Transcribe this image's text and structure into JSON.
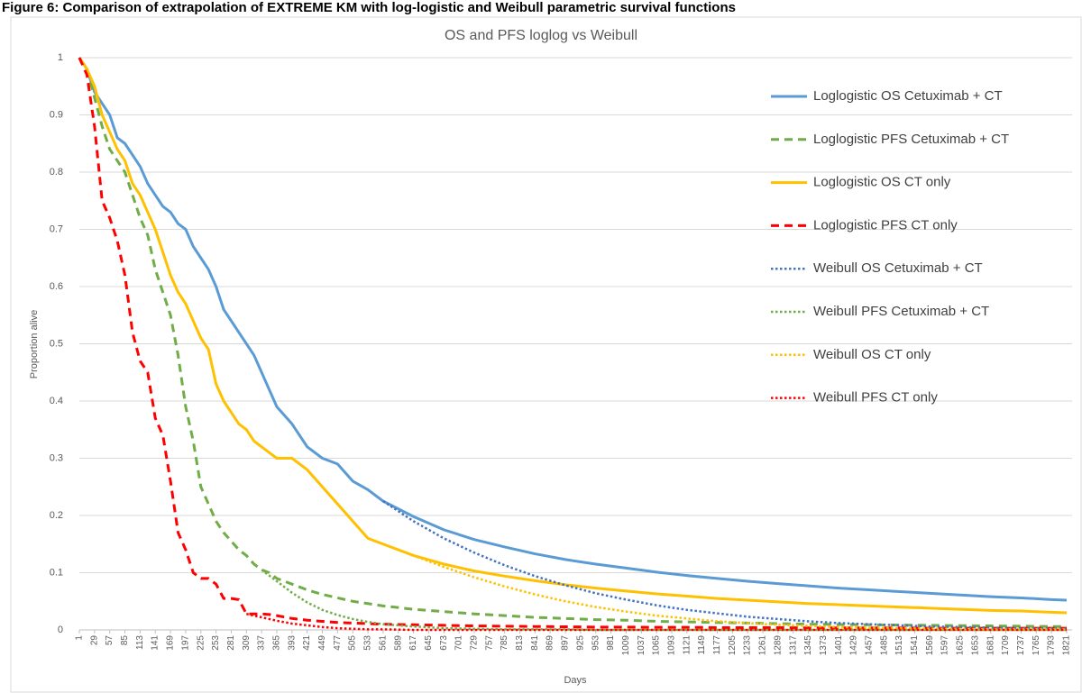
{
  "header": "Figure 6: Comparison of extrapolation of EXTREME KM with log-logistic and Weibull parametric survival functions",
  "chart_data": {
    "type": "line",
    "title": "OS and PFS loglog vs Weibull",
    "x_label": "Days",
    "y_label": "Proportion alive",
    "xlim": [
      1,
      1831
    ],
    "ylim": [
      0,
      1
    ],
    "xticks": [
      1,
      29,
      57,
      85,
      113,
      141,
      169,
      197,
      225,
      253,
      281,
      309,
      337,
      365,
      393,
      421,
      449,
      477,
      505,
      533,
      561,
      589,
      617,
      645,
      673,
      701,
      729,
      757,
      785,
      813,
      841,
      869,
      897,
      925,
      953,
      981,
      1009,
      1037,
      1065,
      1093,
      1121,
      1149,
      1177,
      1205,
      1233,
      1261,
      1289,
      1317,
      1345,
      1373,
      1401,
      1429,
      1457,
      1485,
      1513,
      1541,
      1569,
      1597,
      1625,
      1653,
      1681,
      1709,
      1737,
      1765,
      1793,
      1821
    ],
    "yticks": [
      0,
      0.1,
      0.2,
      0.3,
      0.4,
      0.5,
      0.6,
      0.7,
      0.8,
      0.9,
      1
    ],
    "grid": true,
    "legend_position": "upper right",
    "x": [
      1,
      15,
      29,
      43,
      57,
      71,
      85,
      99,
      113,
      127,
      141,
      155,
      169,
      183,
      197,
      211,
      225,
      239,
      253,
      267,
      281,
      295,
      309,
      323,
      337,
      351,
      365,
      393,
      421,
      449,
      477,
      505,
      533,
      561,
      617,
      673,
      729,
      785,
      841,
      897,
      953,
      1009,
      1065,
      1121,
      1177,
      1233,
      1289,
      1345,
      1401,
      1457,
      1513,
      1569,
      1625,
      1681,
      1737,
      1793,
      1821
    ],
    "series": [
      {
        "name": "Loglogistic OS Cetuximab + CT",
        "color": "#5b9bd5",
        "style": "solid",
        "values": [
          1,
          0.98,
          0.94,
          0.92,
          0.9,
          0.86,
          0.85,
          0.83,
          0.81,
          0.78,
          0.76,
          0.74,
          0.73,
          0.71,
          0.7,
          0.67,
          0.65,
          0.63,
          0.6,
          0.56,
          0.54,
          0.52,
          0.5,
          0.48,
          0.45,
          0.42,
          0.39,
          0.36,
          0.32,
          0.3,
          0.29,
          0.26,
          0.245,
          0.225,
          0.198,
          0.175,
          0.158,
          0.145,
          0.133,
          0.123,
          0.115,
          0.108,
          0.101,
          0.095,
          0.09,
          0.085,
          0.081,
          0.077,
          0.073,
          0.07,
          0.067,
          0.064,
          0.061,
          0.058,
          0.056,
          0.053,
          0.052
        ]
      },
      {
        "name": "Loglogistic PFS Cetuximab + CT",
        "color": "#70ad47",
        "style": "dashed",
        "values": [
          1,
          0.98,
          0.93,
          0.88,
          0.84,
          0.82,
          0.8,
          0.76,
          0.72,
          0.69,
          0.63,
          0.59,
          0.55,
          0.48,
          0.39,
          0.33,
          0.25,
          0.22,
          0.19,
          0.17,
          0.155,
          0.14,
          0.13,
          0.115,
          0.105,
          0.1,
          0.09,
          0.08,
          0.07,
          0.062,
          0.056,
          0.05,
          0.046,
          0.042,
          0.036,
          0.032,
          0.028,
          0.025,
          0.022,
          0.02,
          0.018,
          0.017,
          0.015,
          0.014,
          0.013,
          0.012,
          0.011,
          0.01,
          0.0095,
          0.009,
          0.0085,
          0.008,
          0.0075,
          0.007,
          0.0065,
          0.006,
          0.006
        ]
      },
      {
        "name": "Loglogistic OS CT only",
        "color": "#ffc000",
        "style": "solid",
        "values": [
          1,
          0.98,
          0.95,
          0.9,
          0.87,
          0.84,
          0.82,
          0.78,
          0.76,
          0.73,
          0.7,
          0.66,
          0.62,
          0.59,
          0.57,
          0.54,
          0.51,
          0.49,
          0.43,
          0.4,
          0.38,
          0.36,
          0.35,
          0.33,
          0.32,
          0.31,
          0.3,
          0.3,
          0.28,
          0.25,
          0.22,
          0.19,
          0.16,
          0.15,
          0.13,
          0.115,
          0.103,
          0.094,
          0.086,
          0.079,
          0.073,
          0.068,
          0.063,
          0.059,
          0.055,
          0.052,
          0.049,
          0.046,
          0.044,
          0.042,
          0.04,
          0.038,
          0.036,
          0.034,
          0.033,
          0.031,
          0.03
        ]
      },
      {
        "name": "Loglogistic PFS CT only",
        "color": "#ff0000",
        "style": "dashed",
        "values": [
          1,
          0.97,
          0.88,
          0.75,
          0.72,
          0.68,
          0.62,
          0.52,
          0.47,
          0.45,
          0.37,
          0.34,
          0.26,
          0.17,
          0.14,
          0.1,
          0.09,
          0.09,
          0.08,
          0.055,
          0.055,
          0.053,
          0.028,
          0.028,
          0.028,
          0.027,
          0.025,
          0.02,
          0.017,
          0.015,
          0.013,
          0.012,
          0.011,
          0.01,
          0.009,
          0.008,
          0.007,
          0.0065,
          0.006,
          0.0055,
          0.005,
          0.005,
          0.0045,
          0.0045,
          0.004,
          0.004,
          0.004,
          0.0035,
          0.0035,
          0.0035,
          0.0035,
          0.003,
          0.003,
          0.003,
          0.003,
          0.003,
          0.003
        ]
      },
      {
        "name": "Weibull OS Cetuximab + CT",
        "color": "#4472c4",
        "style": "dotted",
        "values": [
          null,
          null,
          null,
          null,
          null,
          null,
          null,
          null,
          null,
          null,
          null,
          null,
          null,
          null,
          null,
          null,
          null,
          null,
          null,
          null,
          null,
          null,
          null,
          null,
          null,
          null,
          null,
          null,
          null,
          null,
          null,
          null,
          null,
          0.225,
          0.19,
          0.16,
          0.135,
          0.113,
          0.094,
          0.078,
          0.064,
          0.053,
          0.043,
          0.035,
          0.029,
          0.023,
          0.019,
          0.015,
          0.012,
          0.01,
          0.008,
          0.006,
          0.005,
          0.004,
          0.003,
          0.0025,
          0.002
        ]
      },
      {
        "name": "Weibull PFS Cetuximab + CT",
        "color": "#70ad47",
        "style": "dotted",
        "values": [
          null,
          null,
          null,
          null,
          null,
          null,
          null,
          null,
          null,
          null,
          null,
          null,
          null,
          null,
          null,
          null,
          null,
          null,
          null,
          null,
          null,
          null,
          null,
          null,
          0.105,
          0.095,
          0.085,
          0.065,
          0.048,
          0.035,
          0.026,
          0.019,
          0.014,
          0.01,
          0.006,
          0.003,
          0.002,
          0.001,
          0.001,
          0.001,
          0,
          0,
          0,
          0,
          0,
          0,
          0,
          0,
          0,
          0,
          0,
          0,
          0,
          0,
          0,
          0,
          0
        ]
      },
      {
        "name": "Weibull OS CT only",
        "color": "#ffc000",
        "style": "dotted",
        "values": [
          null,
          null,
          null,
          null,
          null,
          null,
          null,
          null,
          null,
          null,
          null,
          null,
          null,
          null,
          null,
          null,
          null,
          null,
          null,
          null,
          null,
          null,
          null,
          null,
          null,
          null,
          null,
          null,
          null,
          null,
          null,
          null,
          null,
          0.15,
          0.13,
          0.11,
          0.092,
          0.076,
          0.062,
          0.05,
          0.04,
          0.032,
          0.025,
          0.02,
          0.015,
          0.012,
          0.009,
          0.007,
          0.005,
          0.004,
          0.003,
          0.002,
          0.0015,
          0.001,
          0.001,
          0.001,
          0.001
        ]
      },
      {
        "name": "Weibull PFS CT only",
        "color": "#ff0000",
        "style": "dotted",
        "values": [
          null,
          null,
          null,
          null,
          null,
          null,
          null,
          null,
          null,
          null,
          null,
          null,
          null,
          null,
          null,
          null,
          null,
          null,
          null,
          null,
          null,
          null,
          0.028,
          0.025,
          0.022,
          0.019,
          0.016,
          0.011,
          0.008,
          0.005,
          0.003,
          0.002,
          0.001,
          0.001,
          0,
          0,
          0,
          0,
          0,
          0,
          0,
          0,
          0,
          0,
          0,
          0,
          0,
          0,
          0,
          0,
          0,
          0,
          0,
          0,
          0,
          0,
          0
        ]
      }
    ]
  }
}
